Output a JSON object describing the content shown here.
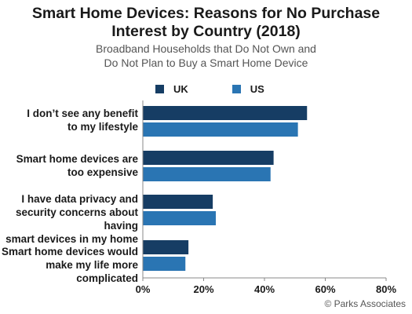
{
  "title_line1": "Smart Home Devices: Reasons for No Purchase",
  "title_line2": "Interest by Country (2018)",
  "subtitle_line1": "Broadband Households that Do Not Own and",
  "subtitle_line2": "Do Not Plan to Buy a Smart Home Device",
  "credit": "© Parks Associates",
  "colors": {
    "UK": "#163d64",
    "US": "#2a75b3",
    "axis": "#888888",
    "text": "#1a1a1a"
  },
  "category_labels": [
    [
      "I don’t see any benefit",
      "to my lifestyle"
    ],
    [
      "Smart home devices are",
      "too expensive"
    ],
    [
      "I have data privacy and",
      "security concerns about having",
      "smart devices in my home"
    ],
    [
      "Smart home devices would",
      "make my life more complicated"
    ]
  ],
  "chart_data": {
    "type": "bar",
    "orientation": "horizontal",
    "categories": [
      "I don’t see any benefit to my lifestyle",
      "Smart home devices are too expensive",
      "I have data privacy and security concerns about having smart devices in my home",
      "Smart home devices would make my life more complicated"
    ],
    "series": [
      {
        "name": "UK",
        "values": [
          54,
          43,
          23,
          15
        ]
      },
      {
        "name": "US",
        "values": [
          51,
          42,
          24,
          14
        ]
      }
    ],
    "xlim": [
      0,
      80
    ],
    "xticks": [
      "0%",
      "20%",
      "40%",
      "60%",
      "80%"
    ],
    "grid": false,
    "legend_position": "top"
  }
}
